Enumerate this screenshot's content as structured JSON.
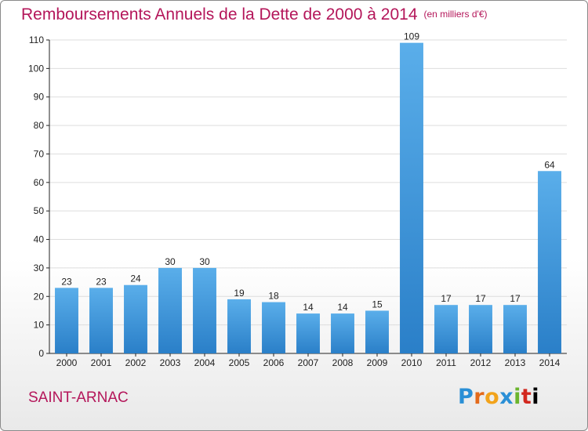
{
  "header": {
    "title": "Remboursements Annuels de la Dette de 2000 à 2014",
    "unit": "(en milliers d'€)"
  },
  "footer": {
    "town": "SAINT-ARNAC",
    "logo_letters": [
      "P",
      "r",
      "o",
      "x",
      "i",
      "t",
      "i"
    ]
  },
  "colors": {
    "title": "#b4165a",
    "bar_light": "#5aaeea",
    "bar_dark": "#2a7fc8",
    "grid": "#dddddd",
    "axis": "#222222"
  },
  "chart_data": {
    "type": "bar",
    "title": "Remboursements Annuels de la Dette de 2000 à 2014",
    "subtitle": "(en milliers d'€)",
    "categories": [
      "2000",
      "2001",
      "2002",
      "2003",
      "2004",
      "2005",
      "2006",
      "2007",
      "2008",
      "2009",
      "2010",
      "2011",
      "2012",
      "2013",
      "2014"
    ],
    "values": [
      23,
      23,
      24,
      30,
      30,
      19,
      18,
      14,
      14,
      15,
      109,
      17,
      17,
      17,
      64
    ],
    "ylim": [
      0,
      110
    ],
    "yticks": [
      0,
      10,
      20,
      30,
      40,
      50,
      60,
      70,
      80,
      90,
      100,
      110
    ],
    "grid": true,
    "data_labels": true
  }
}
